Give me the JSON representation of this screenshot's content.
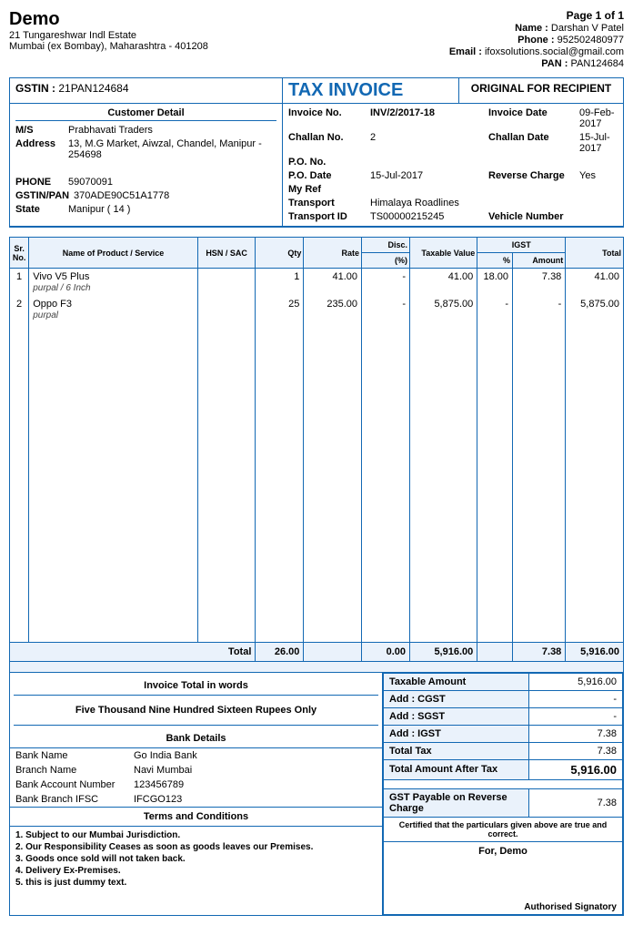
{
  "company": {
    "name": "Demo",
    "addr1": "21 Tungareshwar Indl Estate",
    "addr2": "Mumbai (ex Bombay), Maharashtra - 401208"
  },
  "header_right": {
    "page": "Page 1 of 1",
    "name_lbl": "Name :",
    "name": "Darshan V Patel",
    "phone_lbl": "Phone :",
    "phone": "952502480977",
    "email_lbl": "Email :",
    "email": "ifoxsolutions.social@gmail.com",
    "pan_lbl": "PAN :",
    "pan": "PAN124684"
  },
  "title_row": {
    "gstin_lbl": "GSTIN :",
    "gstin": "21PAN124684",
    "title": "TAX INVOICE",
    "original": "ORIGINAL FOR RECIPIENT"
  },
  "customer": {
    "header": "Customer Detail",
    "ms_lbl": "M/S",
    "ms": "Prabhavati Traders",
    "addr_lbl": "Address",
    "addr": "13, M.G Market, Aiwzal, Chandel, Manipur - 254698",
    "phone_lbl": "PHONE",
    "phone": "59070091",
    "gstin_lbl": "GSTIN/PAN",
    "gstin": "370ADE90C51A1778",
    "state_lbl": "State",
    "state": "Manipur ( 14 )"
  },
  "invoice": {
    "no_lbl": "Invoice No.",
    "no": "INV/2/2017-18",
    "date_lbl": "Invoice Date",
    "date": "09-Feb-2017",
    "challan_no_lbl": "Challan No.",
    "challan_no": "2",
    "challan_date_lbl": "Challan Date",
    "challan_date": "15-Jul-2017",
    "po_no_lbl": "P.O. No.",
    "po_date_lbl": "P.O. Date",
    "po_date": "15-Jul-2017",
    "reverse_lbl": "Reverse Charge",
    "reverse": "Yes",
    "myref_lbl": "My Ref",
    "transport_lbl": "Transport",
    "transport": "Himalaya Roadlines",
    "transport_id_lbl": "Transport ID",
    "transport_id": "TS00000215245",
    "vehicle_lbl": "Vehicle Number"
  },
  "cols": {
    "sr": "Sr. No.",
    "name": "Name of Product / Service",
    "hsn": "HSN / SAC",
    "qty": "Qty",
    "rate": "Rate",
    "disc": "Disc.",
    "disc_sub": "(%)",
    "tval": "Taxable Value",
    "igst": "IGST",
    "igst_p": "%",
    "igst_a": "Amount",
    "total": "Total"
  },
  "items": [
    {
      "sr": "1",
      "name": "Vivo V5 Plus",
      "variant": "purpal / 6 Inch",
      "hsn": "",
      "qty": "1",
      "rate": "41.00",
      "disc": "-",
      "tval": "41.00",
      "igstp": "18.00",
      "igsta": "7.38",
      "total": "41.00"
    },
    {
      "sr": "2",
      "name": "Oppo F3",
      "variant": "purpal",
      "hsn": "",
      "qty": "25",
      "rate": "235.00",
      "disc": "-",
      "tval": "5,875.00",
      "igstp": "-",
      "igsta": "-",
      "total": "5,875.00"
    }
  ],
  "totals_row": {
    "label": "Total",
    "qty": "26.00",
    "rate": "",
    "disc": "0.00",
    "tval": "5,916.00",
    "igsta": "7.38",
    "total": "5,916.00"
  },
  "words": {
    "header": "Invoice Total in words",
    "text": "Five Thousand Nine Hundred Sixteen Rupees Only"
  },
  "bank": {
    "header": "Bank Details",
    "name_lbl": "Bank Name",
    "name": "Go India Bank",
    "branch_lbl": "Branch Name",
    "branch": "Navi Mumbai",
    "acc_lbl": "Bank Account Number",
    "acc": "123456789",
    "ifsc_lbl": "Bank Branch IFSC",
    "ifsc": "IFCGO123"
  },
  "terms": {
    "header": "Terms and Conditions",
    "lines": [
      "1. Subject to our Mumbai Jurisdiction.",
      "2. Our Responsibility Ceases as soon as goods leaves our Premises.",
      "3. Goods once sold will not taken back.",
      "4. Delivery Ex-Premises.",
      "5. this is just dummy text."
    ]
  },
  "summary": {
    "taxable_lbl": "Taxable Amount",
    "taxable": "5,916.00",
    "cgst_lbl": "Add : CGST",
    "cgst": "-",
    "sgst_lbl": "Add : SGST",
    "sgst": "-",
    "igst_lbl": "Add : IGST",
    "igst": "7.38",
    "tax_lbl": "Total Tax",
    "tax": "7.38",
    "after_lbl": "Total Amount After Tax",
    "after": "5,916.00",
    "gst_rev_lbl": "GST Payable on Reverse Charge",
    "gst_rev": "7.38"
  },
  "cert": "Certified that the particulars given above are true and correct.",
  "for": "For, Demo",
  "signatory": "Authorised Signatory"
}
